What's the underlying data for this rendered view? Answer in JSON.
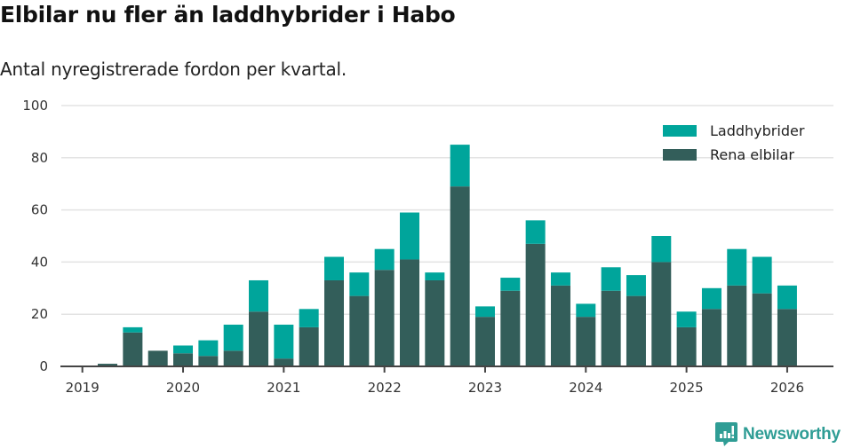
{
  "header": {
    "title": "Elbilar nu fler än laddhybrider i Habo",
    "subtitle": "Antal nyregistrerade fordon per kvartal."
  },
  "brand": {
    "name": "Newsworthy",
    "icon": "newsworthy-logo-icon",
    "color": "#2f9d95"
  },
  "colors": {
    "laddhybrider": "#00a59b",
    "rena_elbilar": "#335e5a",
    "grid": "#e3e3e3",
    "axis": "#444444"
  },
  "chart_data": {
    "type": "bar",
    "stacked": true,
    "title": "Elbilar nu fler än laddhybrider i Habo",
    "subtitle": "Antal nyregistrerade fordon per kvartal.",
    "xlabel": "",
    "ylabel": "",
    "ylim": [
      0,
      100
    ],
    "yticks": [
      0,
      20,
      40,
      60,
      80,
      100
    ],
    "xticks": [
      "2019",
      "2020",
      "2021",
      "2022",
      "2023",
      "2024",
      "2025",
      "2026"
    ],
    "grid": true,
    "legend_position": "top-right",
    "categories": [
      "2019 Q1",
      "2019 Q2",
      "2019 Q3",
      "2019 Q4",
      "2020 Q1",
      "2020 Q2",
      "2020 Q3",
      "2020 Q4",
      "2021 Q1",
      "2021 Q2",
      "2021 Q3",
      "2021 Q4",
      "2022 Q1",
      "2022 Q2",
      "2022 Q3",
      "2022 Q4",
      "2023 Q1",
      "2023 Q2",
      "2023 Q3",
      "2023 Q4",
      "2024 Q1",
      "2024 Q2",
      "2024 Q3",
      "2024 Q4",
      "2025 Q1",
      "2025 Q2",
      "2025 Q3",
      "2025 Q4",
      "2026 Q1"
    ],
    "series": [
      {
        "name": "Rena elbilar",
        "color": "#335e5a",
        "values": [
          0,
          1,
          13,
          6,
          5,
          4,
          6,
          21,
          3,
          15,
          33,
          27,
          37,
          41,
          33,
          69,
          19,
          29,
          47,
          31,
          19,
          29,
          27,
          40,
          15,
          22,
          31,
          28,
          22
        ]
      },
      {
        "name": "Laddhybrider",
        "color": "#00a59b",
        "values": [
          0,
          0,
          2,
          0,
          3,
          6,
          10,
          12,
          13,
          7,
          9,
          9,
          8,
          18,
          3,
          16,
          4,
          5,
          9,
          5,
          5,
          9,
          8,
          10,
          6,
          8,
          14,
          14,
          9
        ]
      }
    ],
    "legend": [
      "Laddhybrider",
      "Rena elbilar"
    ]
  }
}
